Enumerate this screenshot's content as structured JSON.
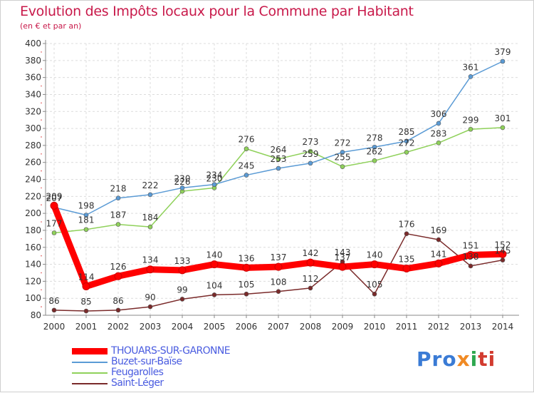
{
  "header": {
    "title": "Evolution des Impôts locaux pour la Commune par Habitant",
    "subtitle": "(en € et par an)"
  },
  "logo": {
    "parts": [
      "Pro",
      "x",
      "i",
      "ti"
    ],
    "colors": [
      "#3a7bd5",
      "#f08a24",
      "#2ea84f",
      "#d23b2f"
    ]
  },
  "chart_data": {
    "type": "line",
    "title": "Evolution des Impôts locaux pour la Commune par Habitant",
    "subtitle": "(en € et par an)",
    "xlabel": "",
    "ylabel": "",
    "x": [
      "2000",
      "2001",
      "2002",
      "2003",
      "2004",
      "2005",
      "2006",
      "2007",
      "2008",
      "2009",
      "2010",
      "2011",
      "2012",
      "2013",
      "2014"
    ],
    "ylim": [
      80,
      400
    ],
    "yticks": [
      80,
      100,
      120,
      140,
      160,
      180,
      200,
      220,
      240,
      260,
      280,
      300,
      320,
      340,
      360,
      380,
      400
    ],
    "grid": true,
    "legend_position": "bottom-left",
    "series": [
      {
        "name": "THOUARS-SUR-GARONNE",
        "color": "#ff0000",
        "values": [
          209,
          114,
          126,
          134,
          133,
          140,
          136,
          137,
          142,
          137,
          140,
          135,
          141,
          151,
          152
        ],
        "labels": [
          "209",
          "114",
          "126",
          "134",
          "133",
          "140",
          "136",
          "137",
          "142",
          "137",
          "140",
          "135",
          "141",
          "151",
          "152"
        ]
      },
      {
        "name": "Buzet-sur-Baïse",
        "color": "#5b9bd5",
        "values": [
          207,
          198,
          218,
          222,
          230,
          234,
          245,
          253,
          259,
          272,
          278,
          285,
          306,
          361,
          379
        ],
        "labels": [
          "207",
          "198",
          "218",
          "222",
          "230",
          "234",
          "245",
          "253",
          "259",
          "272",
          "278",
          "285",
          "306",
          "361",
          "379"
        ]
      },
      {
        "name": "Feugarolles",
        "color": "#8fd15a",
        "values": [
          177,
          181,
          187,
          184,
          226,
          230,
          276,
          264,
          273,
          255,
          262,
          272,
          283,
          299,
          301
        ],
        "labels": [
          "177",
          "181",
          "187",
          "184",
          "226",
          "230",
          "276",
          "264",
          "273",
          "255",
          "262",
          "272",
          "283",
          "299",
          "301"
        ]
      },
      {
        "name": "Saint-Léger",
        "color": "#7a2a2a",
        "values": [
          86,
          85,
          86,
          90,
          99,
          104,
          105,
          108,
          112,
          143,
          105,
          176,
          169,
          138,
          145
        ],
        "labels": [
          "86",
          "85",
          "86",
          "90",
          "99",
          "104",
          "105",
          "108",
          "112",
          "143",
          "105",
          "176",
          "169",
          "138",
          "145"
        ]
      }
    ]
  }
}
